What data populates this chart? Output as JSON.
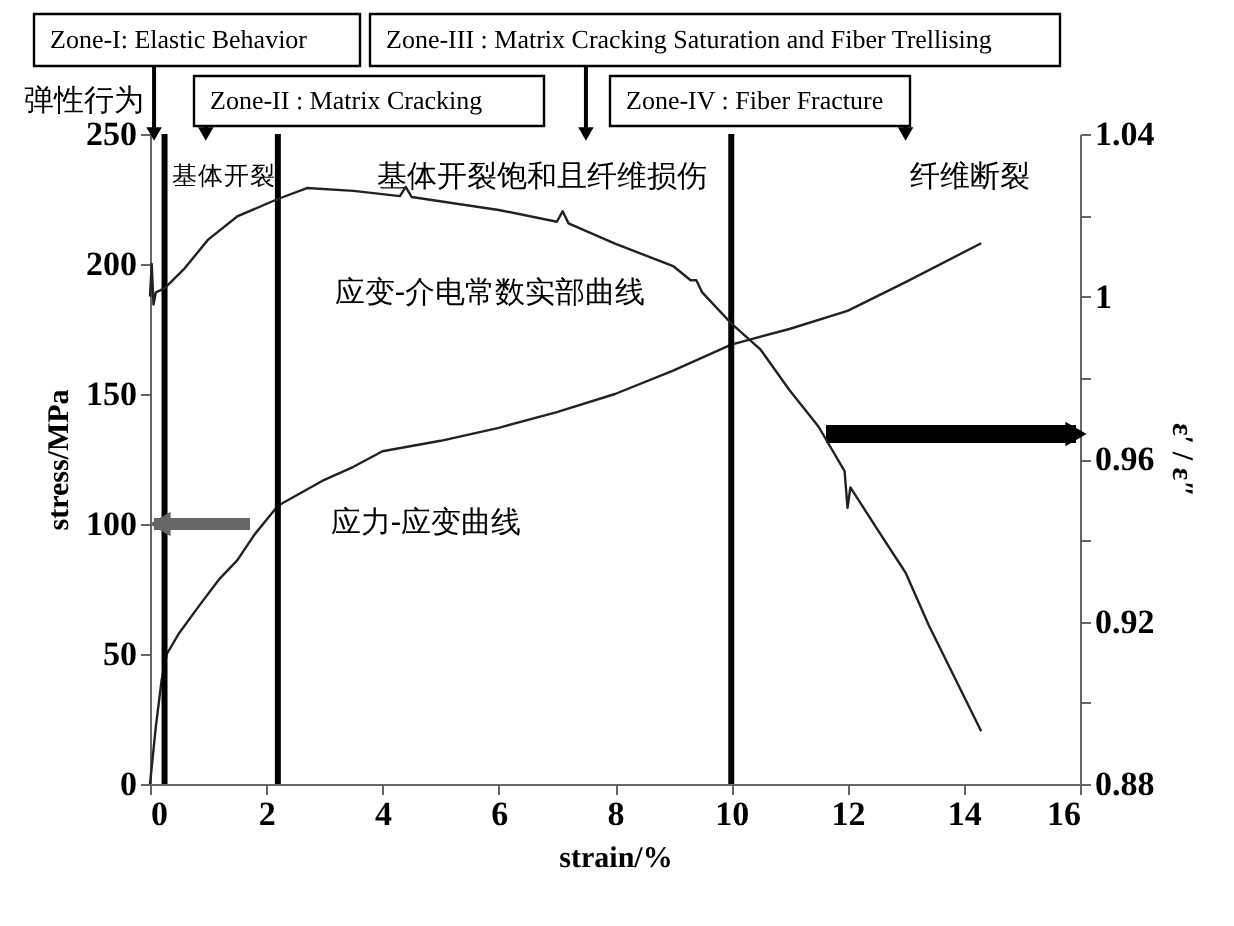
{
  "chart_data": {
    "type": "line",
    "xlabel": "strain/%",
    "ylabel": "stress/MPa",
    "y2label": "ε′ / ε″",
    "xlim": [
      0,
      16
    ],
    "xticks": [
      0,
      2,
      4,
      6,
      8,
      10,
      12,
      14,
      16
    ],
    "ylim": [
      0,
      250
    ],
    "yticks": [
      0,
      50,
      100,
      150,
      200,
      250
    ],
    "y2lim": [
      0.88,
      1.04
    ],
    "y2ticks": [
      0.88,
      {
        "value": 0.9,
        "label": null
      },
      0.92,
      {
        "value": 0.94,
        "label": null
      },
      0.96,
      {
        "value": 0.98,
        "label": null
      },
      1,
      {
        "value": 1.02,
        "label": null
      },
      1.04
    ],
    "grid": false,
    "marker": "none",
    "line_style": "solid",
    "series": [
      {
        "color": "#222222",
        "x": [
          0,
          0.1,
          0.2,
          0.29,
          0.5,
          0.86,
          1.2,
          1.5,
          1.8,
          2.2,
          2.6,
          3,
          3.5,
          4,
          5,
          6,
          7,
          8,
          9,
          10,
          11,
          12,
          13,
          14.3
        ],
        "values": [
          0,
          22,
          40,
          50,
          58,
          69,
          79,
          86,
          96,
          107,
          112,
          117,
          122,
          128,
          132,
          137,
          143,
          150,
          159,
          169,
          175,
          182,
          193,
          208
        ]
      },
      {
        "color": "#222222",
        "axis": "y2",
        "x": [
          0,
          0.03,
          0.06,
          0.1,
          0.25,
          0.6,
          1,
          1.5,
          2.2,
          2.7,
          3.5,
          4.3,
          4.4,
          4.5,
          6,
          7,
          7.1,
          7.2,
          8,
          9,
          9.3,
          9.4,
          9.5,
          10,
          10.5,
          11,
          11.5,
          11.95,
          12.0,
          12.05,
          12.5,
          13,
          13.4,
          14.3
        ],
        "values": [
          1.0,
          1.008,
          0.998,
          1.001,
          1.002,
          1.007,
          1.014,
          1.0197,
          1.024,
          1.0267,
          1.026,
          1.0247,
          1.027,
          1.0245,
          1.0213,
          1.0184,
          1.021,
          1.018,
          1.013,
          1.0075,
          1.004,
          1.004,
          1.001,
          0.9934,
          0.987,
          0.977,
          0.968,
          0.957,
          0.948,
          0.953,
          0.943,
          0.932,
          0.919,
          0.893
        ]
      }
    ],
    "ref_lines": [
      {
        "axis": "x",
        "value": 0.25,
        "color": "#000000"
      },
      {
        "axis": "x",
        "value": 2.2,
        "color": "#000000"
      },
      {
        "axis": "x",
        "value": 10,
        "color": "#000000"
      }
    ],
    "annotations": [
      {
        "text": "Zone-I: Elastic Behavior",
        "x": 0.07,
        "y": 250
      },
      {
        "text": "Zone-II : Matrix Cracking",
        "x": 0.96,
        "y": 250
      },
      {
        "text": "Zone-III : Matrix Cracking Saturation and Fiber Trellising",
        "x": 7.5,
        "y": 250
      },
      {
        "text": "Zone-IV : Fiber Fracture",
        "x": 13,
        "y": 250
      },
      "弹性行为",
      "基体开裂",
      "基体开裂饱和且纤维损伤",
      "纤维断裂",
      "应变-介电常数实部曲线",
      "应力-应变曲线"
    ]
  }
}
